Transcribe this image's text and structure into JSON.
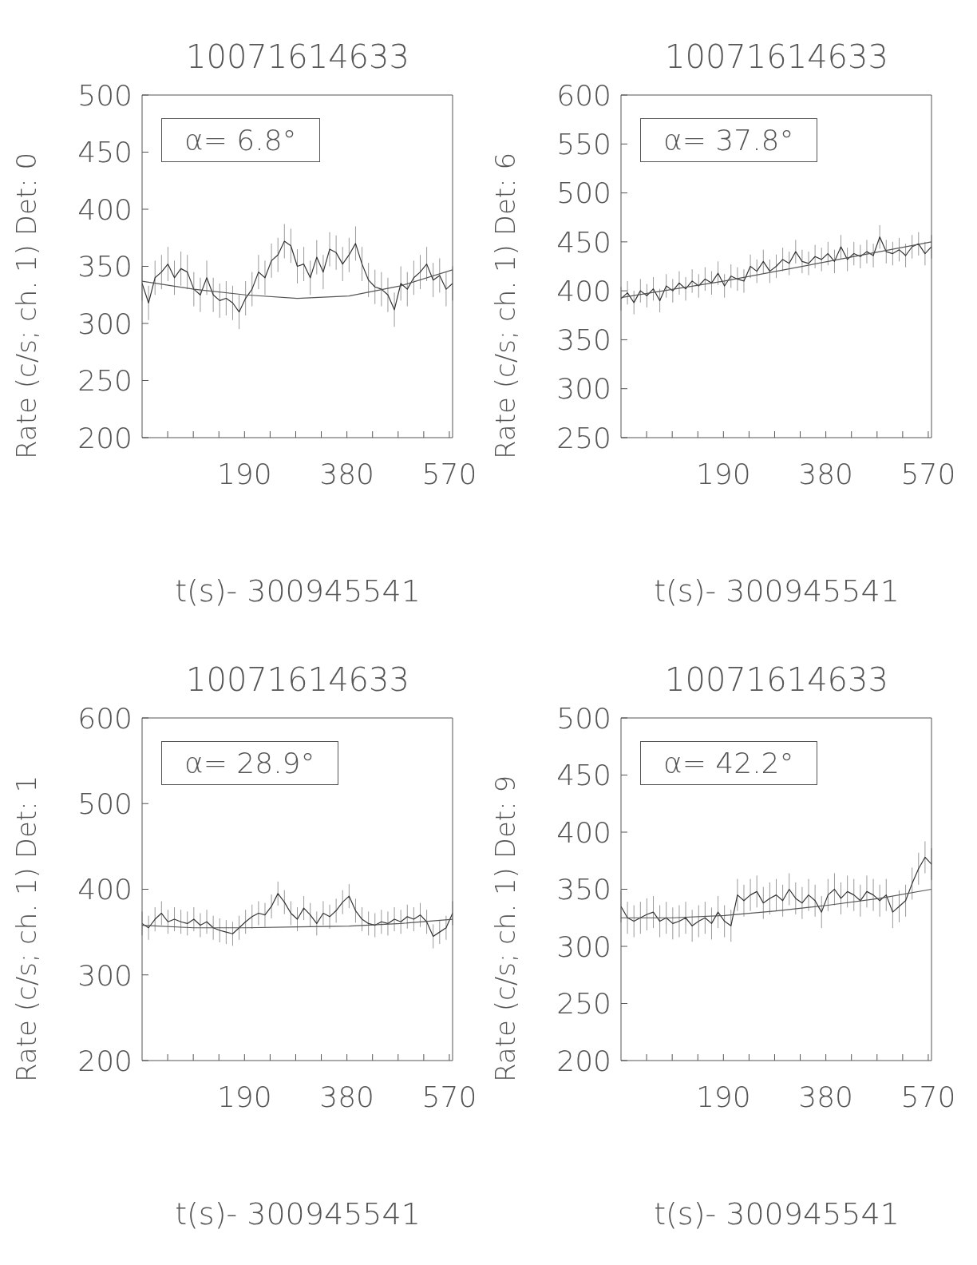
{
  "chart_data": [
    {
      "type": "line",
      "title": "10071614633",
      "xlabel": "t(s)- 300945541",
      "ylabel": "Rate (c/s; ch. 1) Det: 0",
      "annotations": [
        "α= 6.8°"
      ],
      "x": [
        0,
        12,
        24,
        36,
        48,
        60,
        72,
        84,
        96,
        108,
        120,
        132,
        144,
        156,
        168,
        180,
        192,
        204,
        216,
        228,
        240,
        252,
        264,
        276,
        288,
        300,
        312,
        324,
        336,
        348,
        360,
        372,
        384,
        396,
        408,
        420,
        432,
        444,
        456,
        468,
        480,
        492,
        504,
        516,
        528,
        540,
        552,
        564,
        576
      ],
      "xlim": [
        0,
        576
      ],
      "xticks": [
        {
          "value": 47.5,
          "label": null
        },
        {
          "value": 95,
          "label": null
        },
        {
          "value": 142.5,
          "label": null
        },
        190,
        {
          "value": 237.5,
          "label": null
        },
        {
          "value": 285,
          "label": null
        },
        {
          "value": 332.5,
          "label": null
        },
        380,
        {
          "value": 427.5,
          "label": null
        },
        {
          "value": 475,
          "label": null
        },
        {
          "value": 522.5,
          "label": null
        },
        570
      ],
      "ylim": [
        200,
        500
      ],
      "yticks": [
        200,
        250,
        300,
        350,
        400,
        450,
        500
      ],
      "marker": "none",
      "series": [
        {
          "color": "#333333",
          "values": [
            335,
            318,
            340,
            345,
            352,
            340,
            348,
            345,
            330,
            325,
            340,
            325,
            320,
            322,
            318,
            310,
            322,
            330,
            345,
            340,
            355,
            360,
            372,
            368,
            350,
            352,
            340,
            358,
            345,
            365,
            362,
            352,
            360,
            370,
            352,
            338,
            332,
            330,
            325,
            312,
            335,
            330,
            340,
            345,
            352,
            338,
            342,
            330,
            335
          ],
          "errors": [
            15,
            15,
            15,
            15,
            15,
            15,
            15,
            15,
            15,
            15,
            15,
            15,
            15,
            15,
            15,
            15,
            15,
            15,
            15,
            15,
            15,
            15,
            15,
            15,
            15,
            15,
            15,
            15,
            15,
            15,
            15,
            15,
            15,
            15,
            15,
            15,
            15,
            15,
            15,
            15,
            15,
            15,
            15,
            15,
            15,
            15,
            15,
            15,
            15
          ]
        },
        {
          "type": "line",
          "color": "#555555",
          "x": [
            0,
            96,
            192,
            288,
            384,
            480,
            576
          ],
          "values": [
            337,
            330,
            325,
            322,
            324,
            333,
            347
          ]
        }
      ]
    },
    {
      "type": "line",
      "title": "10071614633",
      "xlabel": "t(s)- 300945541",
      "ylabel": "Rate (c/s; ch. 1) Det: 6",
      "annotations": [
        "α= 37.8°"
      ],
      "x": [
        0,
        12,
        24,
        36,
        48,
        60,
        72,
        84,
        96,
        108,
        120,
        132,
        144,
        156,
        168,
        180,
        192,
        204,
        216,
        228,
        240,
        252,
        264,
        276,
        288,
        300,
        312,
        324,
        336,
        348,
        360,
        372,
        384,
        396,
        408,
        420,
        432,
        444,
        456,
        468,
        480,
        492,
        504,
        516,
        528,
        540,
        552,
        564,
        576
      ],
      "xlim": [
        0,
        576
      ],
      "xticks": [
        {
          "value": 47.5,
          "label": null
        },
        {
          "value": 95,
          "label": null
        },
        {
          "value": 142.5,
          "label": null
        },
        190,
        {
          "value": 237.5,
          "label": null
        },
        {
          "value": 285,
          "label": null
        },
        {
          "value": 332.5,
          "label": null
        },
        380,
        {
          "value": 427.5,
          "label": null
        },
        {
          "value": 475,
          "label": null
        },
        {
          "value": 522.5,
          "label": null
        },
        570
      ],
      "ylim": [
        250,
        600
      ],
      "yticks": [
        250,
        300,
        350,
        400,
        450,
        500,
        550,
        600
      ],
      "marker": "none",
      "series": [
        {
          "color": "#333333",
          "values": [
            392,
            398,
            388,
            400,
            395,
            402,
            390,
            405,
            400,
            408,
            402,
            410,
            405,
            412,
            408,
            418,
            405,
            415,
            412,
            410,
            425,
            420,
            430,
            420,
            425,
            432,
            428,
            440,
            430,
            428,
            435,
            432,
            438,
            430,
            445,
            432,
            438,
            435,
            440,
            436,
            455,
            440,
            438,
            442,
            436,
            445,
            448,
            438,
            445
          ],
          "errors": [
            12,
            12,
            12,
            12,
            12,
            12,
            12,
            12,
            12,
            12,
            12,
            12,
            12,
            12,
            12,
            12,
            12,
            12,
            12,
            12,
            12,
            12,
            12,
            12,
            12,
            12,
            12,
            12,
            12,
            12,
            12,
            12,
            12,
            12,
            12,
            12,
            12,
            12,
            12,
            12,
            12,
            12,
            12,
            12,
            12,
            12,
            12,
            12,
            12
          ]
        },
        {
          "type": "line",
          "color": "#555555",
          "x": [
            0,
            192,
            384,
            576
          ],
          "values": [
            393,
            410,
            430,
            450
          ]
        }
      ]
    },
    {
      "type": "line",
      "title": "10071614633",
      "xlabel": "t(s)- 300945541",
      "ylabel": "Rate (c/s; ch. 1) Det: 1",
      "annotations": [
        "α= 28.9°"
      ],
      "x": [
        0,
        12,
        24,
        36,
        48,
        60,
        72,
        84,
        96,
        108,
        120,
        132,
        144,
        156,
        168,
        180,
        192,
        204,
        216,
        228,
        240,
        252,
        264,
        276,
        288,
        300,
        312,
        324,
        336,
        348,
        360,
        372,
        384,
        396,
        408,
        420,
        432,
        444,
        456,
        468,
        480,
        492,
        504,
        516,
        528,
        540,
        552,
        564,
        576
      ],
      "xlim": [
        0,
        576
      ],
      "xticks": [
        {
          "value": 47.5,
          "label": null
        },
        {
          "value": 95,
          "label": null
        },
        {
          "value": 142.5,
          "label": null
        },
        190,
        {
          "value": 237.5,
          "label": null
        },
        {
          "value": 285,
          "label": null
        },
        {
          "value": 332.5,
          "label": null
        },
        380,
        {
          "value": 427.5,
          "label": null
        },
        {
          "value": 475,
          "label": null
        },
        {
          "value": 522.5,
          "label": null
        },
        570
      ],
      "ylim": [
        200,
        600
      ],
      "yticks": [
        200,
        300,
        400,
        500,
        600
      ],
      "marker": "none",
      "series": [
        {
          "color": "#333333",
          "values": [
            360,
            355,
            365,
            372,
            362,
            365,
            362,
            360,
            365,
            358,
            362,
            355,
            352,
            350,
            348,
            355,
            362,
            368,
            372,
            370,
            380,
            395,
            385,
            372,
            365,
            378,
            370,
            360,
            372,
            368,
            375,
            385,
            392,
            375,
            365,
            360,
            358,
            362,
            360,
            365,
            362,
            368,
            365,
            370,
            362,
            345,
            350,
            355,
            372
          ],
          "errors": [
            14,
            14,
            14,
            14,
            14,
            14,
            14,
            14,
            14,
            14,
            14,
            14,
            14,
            14,
            14,
            14,
            14,
            14,
            14,
            14,
            14,
            14,
            14,
            14,
            14,
            14,
            14,
            14,
            14,
            14,
            14,
            14,
            14,
            14,
            14,
            14,
            14,
            14,
            14,
            14,
            14,
            14,
            14,
            14,
            14,
            14,
            14,
            14,
            14
          ]
        },
        {
          "type": "line",
          "color": "#555555",
          "x": [
            0,
            96,
            192,
            288,
            384,
            480,
            576
          ],
          "values": [
            358,
            355,
            355,
            356,
            357,
            360,
            365
          ]
        }
      ]
    },
    {
      "type": "line",
      "title": "10071614633",
      "xlabel": "t(s)- 300945541",
      "ylabel": "Rate (c/s; ch. 1) Det: 9",
      "annotations": [
        "α= 42.2°"
      ],
      "x": [
        0,
        12,
        24,
        36,
        48,
        60,
        72,
        84,
        96,
        108,
        120,
        132,
        144,
        156,
        168,
        180,
        192,
        204,
        216,
        228,
        240,
        252,
        264,
        276,
        288,
        300,
        312,
        324,
        336,
        348,
        360,
        372,
        384,
        396,
        408,
        420,
        432,
        444,
        456,
        468,
        480,
        492,
        504,
        516,
        528,
        540,
        552,
        564,
        576
      ],
      "xlim": [
        0,
        576
      ],
      "xticks": [
        {
          "value": 47.5,
          "label": null
        },
        {
          "value": 95,
          "label": null
        },
        {
          "value": 142.5,
          "label": null
        },
        190,
        {
          "value": 237.5,
          "label": null
        },
        {
          "value": 285,
          "label": null
        },
        {
          "value": 332.5,
          "label": null
        },
        380,
        {
          "value": 427.5,
          "label": null
        },
        {
          "value": 475,
          "label": null
        },
        {
          "value": 522.5,
          "label": null
        },
        570
      ],
      "ylim": [
        200,
        500
      ],
      "yticks": [
        200,
        250,
        300,
        350,
        400,
        450,
        500
      ],
      "marker": "none",
      "series": [
        {
          "color": "#333333",
          "values": [
            335,
            325,
            322,
            325,
            328,
            330,
            322,
            325,
            320,
            322,
            325,
            318,
            322,
            325,
            320,
            330,
            322,
            318,
            345,
            340,
            345,
            348,
            338,
            342,
            345,
            340,
            350,
            342,
            338,
            345,
            340,
            330,
            345,
            350,
            342,
            348,
            345,
            340,
            348,
            345,
            340,
            345,
            330,
            335,
            340,
            355,
            368,
            378,
            372
          ],
          "errors": [
            14,
            14,
            14,
            14,
            14,
            14,
            14,
            14,
            14,
            14,
            14,
            14,
            14,
            14,
            14,
            14,
            14,
            14,
            14,
            14,
            14,
            14,
            14,
            14,
            14,
            14,
            14,
            14,
            14,
            14,
            14,
            14,
            14,
            14,
            14,
            14,
            14,
            14,
            14,
            14,
            14,
            14,
            14,
            14,
            14,
            14,
            14,
            14,
            14
          ]
        },
        {
          "type": "line",
          "color": "#555555",
          "x": [
            0,
            96,
            192,
            288,
            384,
            480,
            576
          ],
          "values": [
            325,
            325,
            327,
            331,
            336,
            342,
            350
          ]
        }
      ]
    }
  ]
}
